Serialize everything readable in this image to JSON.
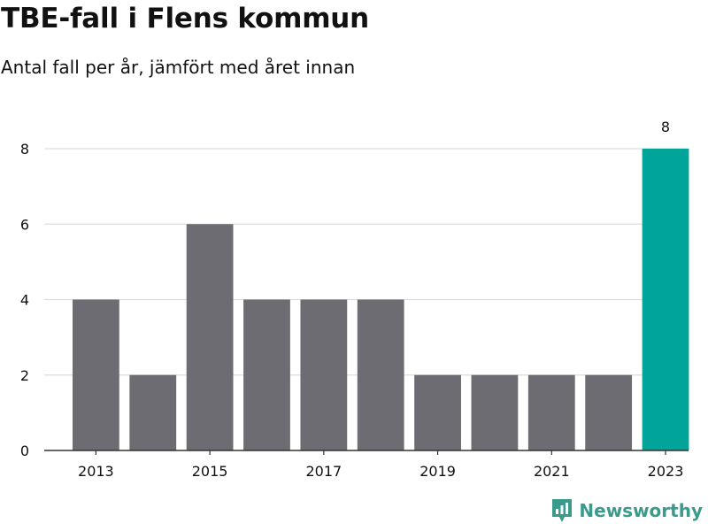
{
  "title": "TBE-fall i Flens kommun",
  "subtitle": "Antal fall per år, jämfört med året innan",
  "brand": "Newsworthy",
  "colors": {
    "default_bar": "#6d6c72",
    "highlight_bar": "#00a499",
    "grid": "#dddddd",
    "axis": "#333333",
    "brand": "#3a9a8c"
  },
  "chart_data": {
    "type": "bar",
    "categories": [
      "2013",
      "2014",
      "2015",
      "2016",
      "2017",
      "2018",
      "2019",
      "2020",
      "2021",
      "2022",
      "2023"
    ],
    "values": [
      4,
      2,
      6,
      4,
      4,
      4,
      2,
      2,
      2,
      2,
      8
    ],
    "highlight_index": 10,
    "data_labels": [
      {
        "index": 10,
        "text": "8"
      }
    ],
    "x_tick_labels": [
      "2013",
      "2015",
      "2017",
      "2019",
      "2021",
      "2023"
    ],
    "y_ticks": [
      0,
      2,
      4,
      6,
      8
    ],
    "ylim": [
      0,
      8
    ],
    "xlabel": "",
    "ylabel": "",
    "grid": true
  }
}
